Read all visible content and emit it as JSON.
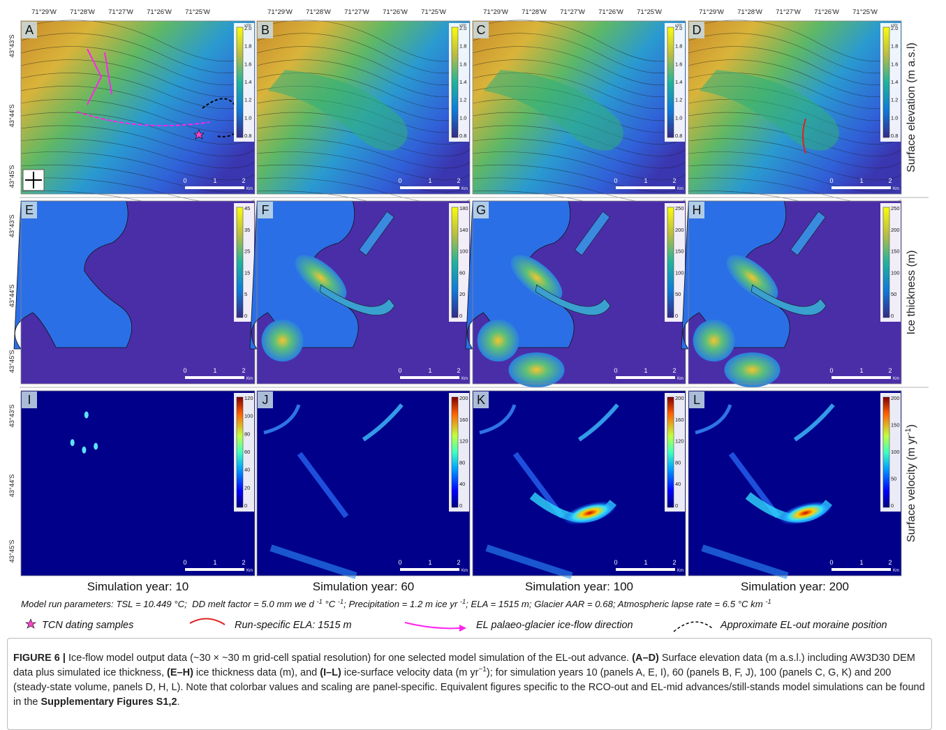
{
  "figure": {
    "lon_labels": [
      "71°29'W",
      "71°28'W",
      "71°27'W",
      "71°26'W",
      "71°25'W"
    ],
    "lat_labels": [
      "43°43'S",
      "43°44'S",
      "43°45'S"
    ],
    "scale_labels": [
      "0",
      "1",
      "2",
      "Km"
    ],
    "rows": [
      {
        "kind": "elevation",
        "label": [
          {
            "text": "Surface elevation (m a.s.l)"
          }
        ],
        "panels": [
          {
            "letter": "A",
            "exponent": "x10³",
            "colorbar": [
              "2.0",
              "1.8",
              "1.6",
              "1.4",
              "1.2",
              "1.0",
              "0.8"
            ]
          },
          {
            "letter": "B",
            "exponent": "x10³",
            "colorbar": [
              "2.0",
              "1.8",
              "1.6",
              "1.4",
              "1.2",
              "1.0",
              "0.8"
            ]
          },
          {
            "letter": "C",
            "exponent": "x10³",
            "colorbar": [
              "2.0",
              "1.8",
              "1.6",
              "1.4",
              "1.2",
              "1.0",
              "0.8"
            ]
          },
          {
            "letter": "D",
            "exponent": "x10³",
            "colorbar": [
              "2.0",
              "1.8",
              "1.6",
              "1.4",
              "1.2",
              "1.0",
              "0.8"
            ]
          }
        ]
      },
      {
        "kind": "thickness",
        "label": [
          {
            "text": "Ice thickness (m)"
          }
        ],
        "panels": [
          {
            "letter": "E",
            "colorbar": [
              "45",
              "35",
              "25",
              "15",
              "5",
              "0"
            ]
          },
          {
            "letter": "F",
            "colorbar": [
              "180",
              "140",
              "100",
              "60",
              "20",
              "0"
            ]
          },
          {
            "letter": "G",
            "colorbar": [
              "250",
              "200",
              "150",
              "100",
              "50",
              "0"
            ]
          },
          {
            "letter": "H",
            "colorbar": [
              "250",
              "200",
              "150",
              "100",
              "50",
              "0"
            ]
          }
        ]
      },
      {
        "kind": "velocity",
        "label": [
          {
            "text": "Surface velocity (m yr"
          },
          {
            "text": "-1",
            "sup": true
          },
          {
            "text": ")"
          }
        ],
        "panels": [
          {
            "letter": "I",
            "colorbar": [
              "120",
              "100",
              "80",
              "60",
              "40",
              "20",
              "0"
            ]
          },
          {
            "letter": "J",
            "colorbar": [
              "200",
              "160",
              "120",
              "80",
              "40",
              "0"
            ]
          },
          {
            "letter": "K",
            "colorbar": [
              "200",
              "160",
              "120",
              "80",
              "40",
              "0"
            ]
          },
          {
            "letter": "L",
            "colorbar": [
              "200",
              "150",
              "100",
              "50",
              "0"
            ]
          }
        ]
      }
    ],
    "columns": [
      "Simulation year: 10",
      "Simulation year: 60",
      "Simulation year: 100",
      "Simulation year: 200"
    ],
    "parameters": [
      {
        "text": "Model run parameters: TSL = 10.449 °C;  DD melt factor = 5.0 mm we d "
      },
      {
        "text": "-1",
        "sup": true
      },
      {
        "text": " °C "
      },
      {
        "text": "-1",
        "sup": true
      },
      {
        "text": "; Precipitation = 1.2 m ice yr "
      },
      {
        "text": "-1",
        "sup": true
      },
      {
        "text": "; ELA = 1515 m; Glacier AAR = 0.68; Atmospheric lapse rate = 6.5 °C km "
      },
      {
        "text": "-1",
        "sup": true
      }
    ],
    "legend": [
      "TCN dating samples",
      "Run-specific ELA: 1515 m",
      "EL palaeo-glacier ice-flow direction",
      "Approximate EL-out moraine position"
    ]
  },
  "caption": [
    {
      "text": "FIGURE 6 | ",
      "bold": true
    },
    {
      "text": "Ice-flow model output data (~30 × ~30 m grid-cell spatial resolution) for one selected model simulation of the EL-out advance. "
    },
    {
      "text": "(A–D)",
      "bold": true
    },
    {
      "text": " Surface elevation data (m a.s.l.) including AW3D30 DEM data plus simulated ice thickness, "
    },
    {
      "text": "(E–H)",
      "bold": true
    },
    {
      "text": " ice thickness data (m), and "
    },
    {
      "text": "(I–L)",
      "bold": true
    },
    {
      "text": " ice-surface velocity data (m yr"
    },
    {
      "text": "−1",
      "sup": true
    },
    {
      "text": "); for simulation years 10 (panels A, E, I), 60 (panels B, F, J), 100 (panels C, G, K) and 200 (steady-state volume, panels D, H, L). Note that colorbar values and scaling are panel-specific. Equivalent figures specific to the RCO-out and EL-mid advances/still-stands model simulations can be found in the "
    },
    {
      "text": "Supplementary Figures S1,2",
      "bold": true
    },
    {
      "text": "."
    }
  ]
}
